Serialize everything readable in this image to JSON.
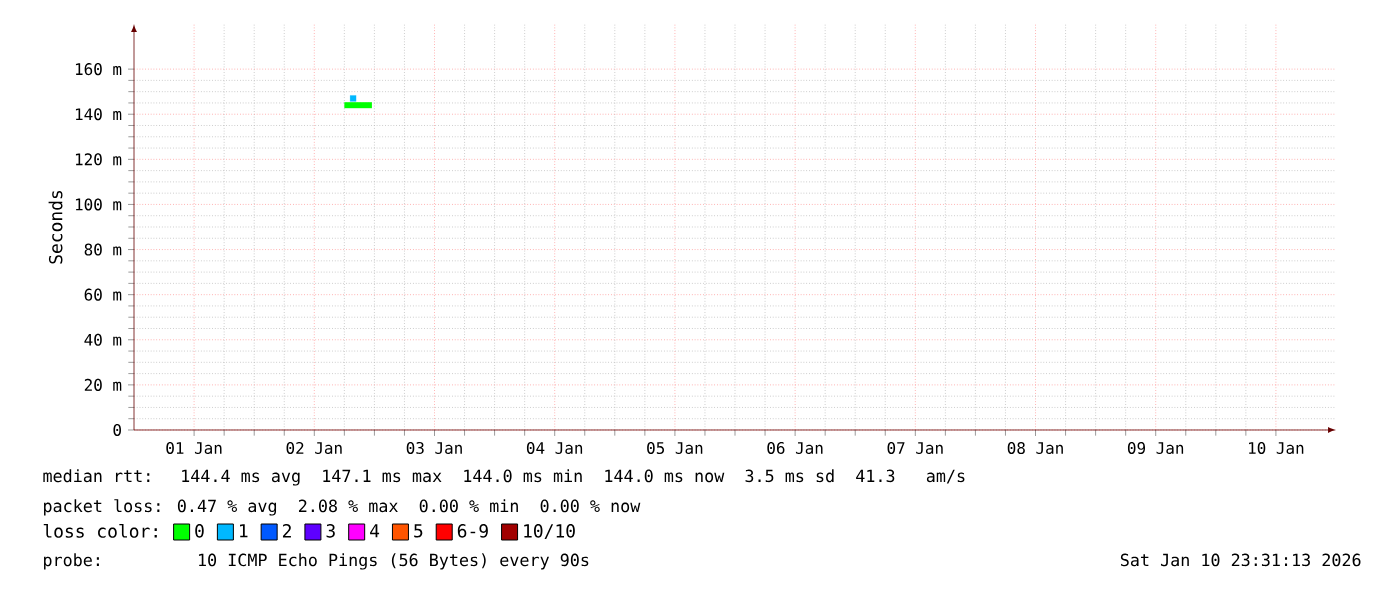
{
  "chart_data": {
    "type": "line",
    "ylabel": "Seconds",
    "legend_title": "loss color:",
    "xlim": [
      "2026-01-01T00:00",
      "2026-01-11T00:00"
    ],
    "xticks": [
      {
        "value": "2026-01-01T12:00",
        "label": "01 Jan"
      },
      {
        "value": "2026-01-02T12:00",
        "label": "02 Jan"
      },
      {
        "value": "2026-01-03T12:00",
        "label": "03 Jan"
      },
      {
        "value": "2026-01-04T12:00",
        "label": "04 Jan"
      },
      {
        "value": "2026-01-05T12:00",
        "label": "05 Jan"
      },
      {
        "value": "2026-01-06T12:00",
        "label": "06 Jan"
      },
      {
        "value": "2026-01-07T12:00",
        "label": "07 Jan"
      },
      {
        "value": "2026-01-08T12:00",
        "label": "08 Jan"
      },
      {
        "value": "2026-01-09T12:00",
        "label": "09 Jan"
      },
      {
        "value": "2026-01-10T12:00",
        "label": "10 Jan"
      }
    ],
    "ylim": [
      0,
      180
    ],
    "yticks": [
      0,
      {
        "value": 20,
        "label": "20 m"
      },
      {
        "value": 40,
        "label": "40 m"
      },
      {
        "value": 60,
        "label": "60 m"
      },
      {
        "value": 80,
        "label": "80 m"
      },
      {
        "value": 100,
        "label": "100 m"
      },
      {
        "value": 120,
        "label": "120 m"
      },
      {
        "value": 140,
        "label": "140 m"
      },
      {
        "value": 160,
        "label": "160 m"
      }
    ],
    "grid": true,
    "legend": "bottom",
    "line_style": "solid",
    "marker": "none",
    "series": [
      {
        "name": "0",
        "color": "#00ff00",
        "x": [
          "2026-01-02T18:00",
          "2026-01-02T19:15",
          "2026-01-02T20:15",
          "2026-01-02T23:30"
        ],
        "values": [
          144,
          144,
          144,
          144
        ]
      },
      {
        "name": "1",
        "color": "#00b8ff",
        "type": "scatter",
        "marker": "square",
        "x": [
          "2026-01-02T19:45"
        ],
        "values": [
          147
        ]
      },
      {
        "name": "2",
        "color": "#0059ff"
      },
      {
        "name": "3",
        "color": "#5e00ff"
      },
      {
        "name": "4",
        "color": "#ff00ff"
      },
      {
        "name": "5",
        "color": "#ff5500"
      },
      {
        "name": "6-9",
        "color": "#ff0000"
      },
      {
        "name": "10/10",
        "color": "#a10000"
      }
    ],
    "annotations": [
      "median rtt:  144.4 ms avg  147.1 ms max  144.0 ms min  144.0 ms now  3.5 ms sd  41.3   am/s",
      "packet loss: 0.47 % avg  2.08 % max  0.00 % min  0.00 % now",
      "probe:       10 ICMP Echo Pings (56 Bytes) every 90s",
      "Sat Jan 10 23:31:13 2026"
    ]
  }
}
